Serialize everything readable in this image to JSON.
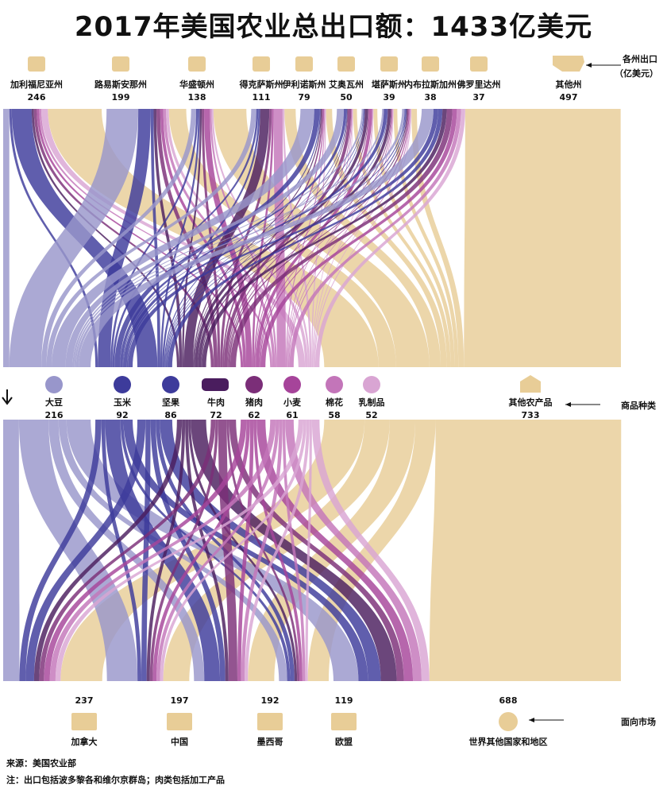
{
  "title": "2017年美国农业总出口额：1433亿美元",
  "side_labels": {
    "states": "各州出口",
    "states_unit": "（亿美元）",
    "products": "商品种类",
    "markets": "面向市场"
  },
  "footer": {
    "source": "来源：美国农业部",
    "note": "注：出口包括波多黎各和维尔京群岛；肉类包括加工产品"
  },
  "colors": {
    "other": "#e8cd97",
    "blue_light": "#9896cb",
    "blue_dark": "#3d3b9b",
    "purple_dark": "#4a1d5e",
    "purple_mid": "#7b2e78",
    "magenta": "#a6449a",
    "pink": "#c375b9",
    "pink_light": "#d9a5d3"
  },
  "chart_data": {
    "type": "sankey",
    "total": 1433,
    "unit": "亿美元",
    "states": [
      {
        "name": "加利福尼亚州",
        "value": 246,
        "icon": "california-icon"
      },
      {
        "name": "路易斯安那州",
        "value": 199,
        "icon": "louisiana-icon"
      },
      {
        "name": "华盛顿州",
        "value": 138,
        "icon": "washington-icon"
      },
      {
        "name": "得克萨斯州",
        "value": 111,
        "icon": "texas-icon"
      },
      {
        "name": "伊利诺斯州",
        "value": 79,
        "icon": "illinois-icon"
      },
      {
        "name": "艾奥瓦州",
        "value": 50,
        "icon": "iowa-icon"
      },
      {
        "name": "堪萨斯州",
        "value": 39,
        "icon": "kansas-icon"
      },
      {
        "name": "内布拉斯加州",
        "value": 38,
        "icon": "nebraska-icon"
      },
      {
        "name": "佛罗里达州",
        "value": 37,
        "icon": "florida-icon"
      },
      {
        "name": "其他州",
        "value": 497,
        "icon": "usa-icon"
      }
    ],
    "products": [
      {
        "name": "大豆",
        "value": 216,
        "icon": "soybean-icon"
      },
      {
        "name": "玉米",
        "value": 92,
        "icon": "corn-icon"
      },
      {
        "name": "坚果",
        "value": 86,
        "icon": "nut-icon"
      },
      {
        "name": "牛肉",
        "value": 72,
        "icon": "cow-icon"
      },
      {
        "name": "猪肉",
        "value": 62,
        "icon": "pig-icon"
      },
      {
        "name": "小麦",
        "value": 61,
        "icon": "wheat-icon"
      },
      {
        "name": "棉花",
        "value": 58,
        "icon": "cotton-icon"
      },
      {
        "name": "乳制品",
        "value": 52,
        "icon": "milk-icon"
      },
      {
        "name": "其他农产品",
        "value": 733,
        "icon": "barn-icon"
      }
    ],
    "markets": [
      {
        "name": "加拿大",
        "value": 237,
        "icon": "maple-leaf-icon"
      },
      {
        "name": "中国",
        "value": 197,
        "icon": "china-flag-icon"
      },
      {
        "name": "墨西哥",
        "value": 192,
        "icon": "mexico-map-icon"
      },
      {
        "name": "欧盟",
        "value": 119,
        "icon": "eu-flag-icon"
      },
      {
        "name": "世界其他国家和地区",
        "value": 688,
        "icon": "globe-icon"
      }
    ]
  }
}
